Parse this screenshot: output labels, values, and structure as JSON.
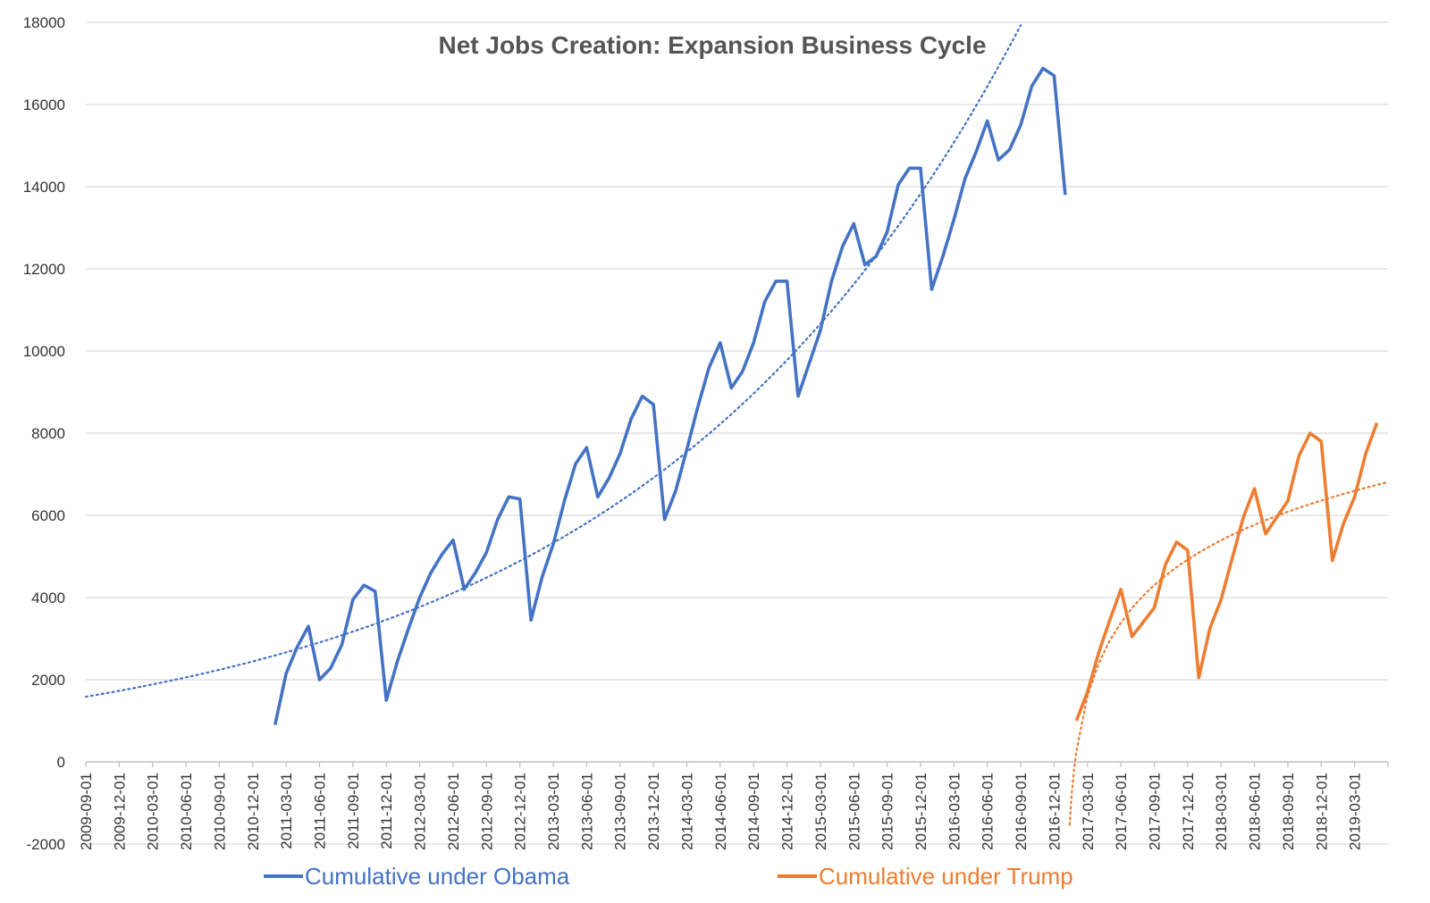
{
  "chart_data": {
    "type": "line",
    "title": "Net Jobs Creation: Expansion Business Cycle",
    "xlabel": "",
    "ylabel": "",
    "ylim": [
      -2000,
      18000
    ],
    "yticks": [
      -2000,
      0,
      2000,
      4000,
      6000,
      8000,
      10000,
      12000,
      14000,
      16000,
      18000
    ],
    "xtick_labels": [
      "2009-09-01",
      "2009-12-01",
      "2010-03-01",
      "2010-06-01",
      "2010-09-01",
      "2010-12-01",
      "2011-03-01",
      "2011-06-01",
      "2011-09-01",
      "2011-12-01",
      "2012-03-01",
      "2012-06-01",
      "2012-09-01",
      "2012-12-01",
      "2013-03-01",
      "2013-06-01",
      "2013-09-01",
      "2013-12-01",
      "2014-03-01",
      "2014-06-01",
      "2014-09-01",
      "2014-12-01",
      "2015-03-01",
      "2015-06-01",
      "2015-09-01",
      "2015-12-01",
      "2016-03-01",
      "2016-06-01",
      "2016-09-01",
      "2016-12-01",
      "2017-03-01",
      "2017-06-01",
      "2017-09-01",
      "2017-12-01",
      "2018-03-01",
      "2018-06-01",
      "2018-09-01",
      "2018-12-01",
      "2019-03-01"
    ],
    "x_range": [
      "2009-09-01",
      "2019-06-01"
    ],
    "grid": true,
    "legend_position": "bottom",
    "series": [
      {
        "name": "Cumulative under Obama",
        "color": "#4472C4",
        "start": "2011-02-01",
        "values": [
          900,
          2150,
          2800,
          3300,
          2000,
          2280,
          2850,
          3950,
          4300,
          4150,
          1500,
          2450,
          3250,
          4000,
          4600,
          5050,
          5400,
          4200,
          4600,
          5100,
          5900,
          6450,
          6400,
          3450,
          4500,
          5300,
          6350,
          7250,
          7650,
          6450,
          6900,
          7500,
          8350,
          8900,
          8700,
          5900,
          6600,
          7600,
          8650,
          9600,
          10200,
          9100,
          9500,
          10200,
          11200,
          11700,
          11700,
          8900,
          9700,
          10500,
          11700,
          12550,
          13100,
          12100,
          12300,
          12900,
          14050,
          14450,
          14450,
          11500,
          12300,
          13200,
          14200,
          14850,
          15600,
          14650,
          14900,
          15500,
          16450,
          16880,
          16700,
          13800
        ]
      },
      {
        "name": "Cumulative under Trump",
        "color": "#ED7D31",
        "start": "2017-02-01",
        "values": [
          1000,
          1700,
          2650,
          3450,
          4200,
          3050,
          3400,
          3750,
          4800,
          5350,
          5150,
          2050,
          3250,
          3950,
          4950,
          5950,
          6650,
          5550,
          5950,
          6350,
          7450,
          8000,
          7800,
          4900,
          5800,
          6450,
          7500,
          8250
        ]
      }
    ],
    "trendlines": [
      {
        "series": "Cumulative under Obama",
        "style": "dotted",
        "color": "#4472C4"
      },
      {
        "series": "Cumulative under Trump",
        "style": "dotted",
        "color": "#ED7D31"
      }
    ]
  }
}
